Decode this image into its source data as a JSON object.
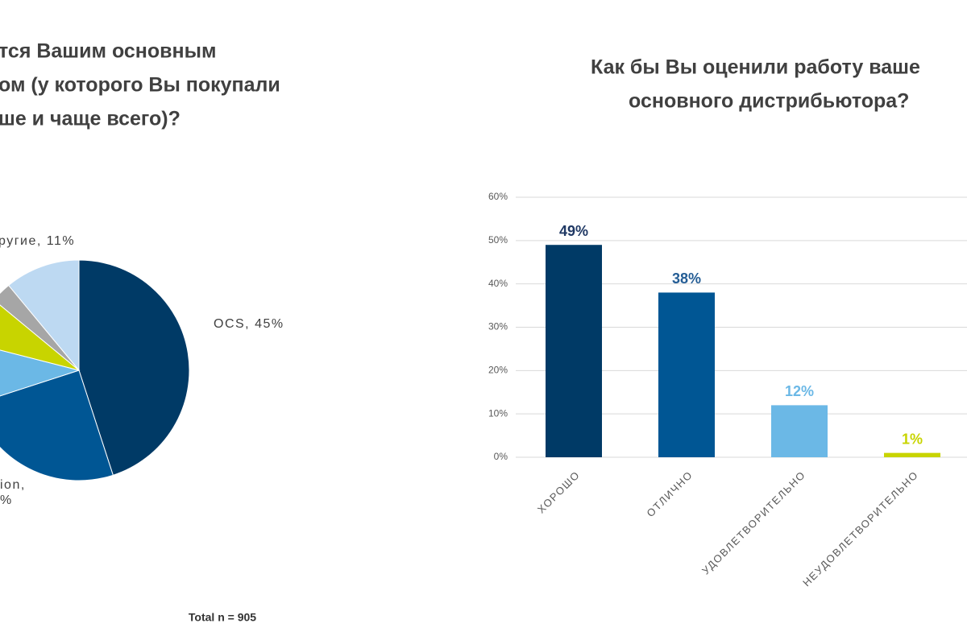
{
  "chart_data": [
    {
      "type": "pie",
      "title": [
        "тся Вашим основным",
        "ом (у которого Вы покупали",
        "ше и чаще всего)?"
      ],
      "values": [
        45,
        25,
        9,
        7,
        3,
        11
      ],
      "colors": [
        "#003a66",
        "#005694",
        "#6bb8e6",
        "#c8d400",
        "#a6a6a6",
        "#bdd9f2"
      ],
      "value_labels": [
        "OCS, 45%",
        [
          "ion,",
          "%"
        ],
        null,
        null,
        null,
        "ругие, 11%"
      ],
      "note": "Total n = 905"
    },
    {
      "type": "bar",
      "title": [
        "Как бы Вы оценили работу ваше",
        "основного дистрибьютора?"
      ],
      "categories": [
        "ХОРОШО",
        "ОТЛИЧНО",
        "УДОВЛЕТВОРИТЕЛЬНО",
        "НЕУДОВЛЕТВОРИТЕЛЬНО"
      ],
      "values": [
        49,
        38,
        12,
        1
      ],
      "value_labels": [
        "49%",
        "38%",
        "12%",
        "1%"
      ],
      "colors": [
        "#003a66",
        "#005694",
        "#6bb8e6",
        "#c8d400"
      ],
      "label_colors": [
        "#1f3864",
        "#245d95",
        "#6bb8e6",
        "#c8d400"
      ],
      "ylim": [
        0,
        60
      ],
      "yticks": [
        {
          "value": 0,
          "label": "0%"
        },
        {
          "value": 10,
          "label": "10%"
        },
        {
          "value": 20,
          "label": "20%"
        },
        {
          "value": 30,
          "label": "30%"
        },
        {
          "value": 40,
          "label": "40%"
        },
        {
          "value": 50,
          "label": "50%"
        },
        {
          "value": 60,
          "label": "60%"
        }
      ],
      "grid": true
    }
  ]
}
